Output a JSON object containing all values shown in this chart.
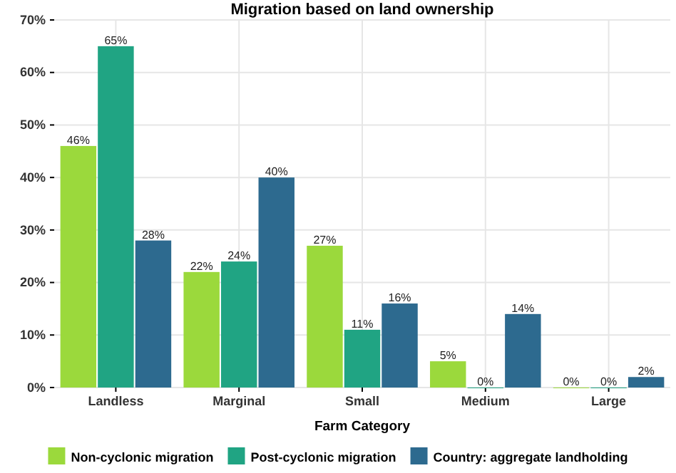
{
  "chart_data": {
    "type": "bar",
    "title": "Migration based on land ownership",
    "xlabel": "Farm Category",
    "categories": [
      "Landless",
      "Marginal",
      "Small",
      "Medium",
      "Large"
    ],
    "series": [
      {
        "name": "Non-cyclonic migration",
        "color": "#9bd93c",
        "values": [
          46,
          22,
          27,
          5,
          0
        ],
        "value_labels": [
          "46%",
          "22%",
          "27%",
          "5%",
          "0%"
        ]
      },
      {
        "name": "Post-cyclonic migration",
        "color": "#20a483",
        "values": [
          65,
          24,
          11,
          0,
          0
        ],
        "value_labels": [
          "65%",
          "24%",
          "11%",
          "0%",
          "0%"
        ]
      },
      {
        "name": "Country: aggregate landholding",
        "color": "#2d6a8f",
        "values": [
          28,
          40,
          16,
          14,
          2
        ],
        "value_labels": [
          "28%",
          "40%",
          "16%",
          "14%",
          "2%"
        ]
      }
    ],
    "ylim": [
      0,
      70
    ],
    "yticks": [
      {
        "value": 0,
        "label": "0%"
      },
      {
        "value": 10,
        "label": "10%"
      },
      {
        "value": 20,
        "label": "20%"
      },
      {
        "value": 30,
        "label": "30%"
      },
      {
        "value": 40,
        "label": "40%"
      },
      {
        "value": 50,
        "label": "50%"
      },
      {
        "value": 60,
        "label": "60%"
      },
      {
        "value": 70,
        "label": "70%"
      }
    ],
    "grid": true,
    "legend": "bottom"
  }
}
